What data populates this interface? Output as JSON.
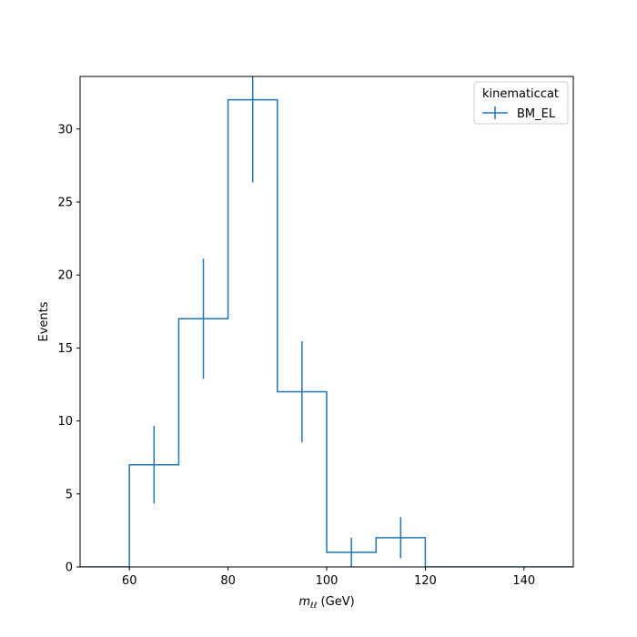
{
  "chart_data": {
    "type": "step-histogram",
    "xlabel_main": "m",
    "xlabel_sub": "ℓℓ",
    "xlabel_unit": " (GeV)",
    "ylabel": "Events",
    "xlim": [
      50,
      150
    ],
    "ylim": [
      0,
      33.6
    ],
    "xticks": [
      60,
      80,
      100,
      120,
      140
    ],
    "yticks": [
      0,
      5,
      10,
      15,
      20,
      25,
      30
    ],
    "legend": {
      "title": "kinematiccat",
      "placement": "upper-right"
    },
    "series": [
      {
        "name": "BM_EL",
        "color": "#1f77b4",
        "bin_edges": [
          50,
          60,
          70,
          80,
          90,
          100,
          110,
          120,
          130,
          140,
          150
        ],
        "values": [
          0,
          7,
          17,
          32,
          12,
          1,
          2,
          0,
          0,
          0
        ],
        "errors": [
          0,
          2.65,
          4.12,
          5.66,
          3.46,
          1.0,
          1.41,
          0,
          0,
          0
        ]
      }
    ]
  }
}
